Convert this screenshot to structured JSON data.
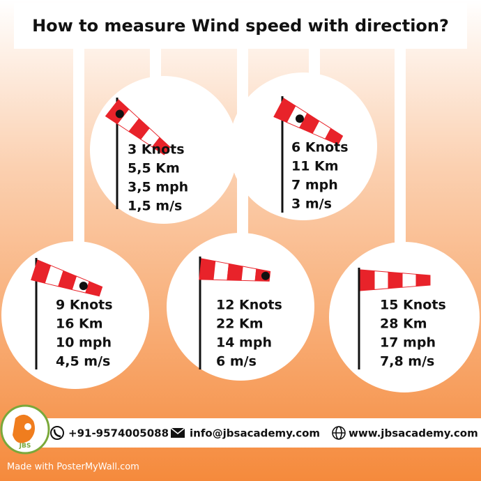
{
  "title": "How to measure Wind speed with direction?",
  "cards": [
    {
      "lines": [
        "3 Knots",
        "5,5 Km",
        "3,5 mph",
        "1,5 m/s"
      ]
    },
    {
      "lines": [
        "6 Knots",
        "11 Km",
        "7 mph",
        "3 m/s"
      ]
    },
    {
      "lines": [
        "9 Knots",
        "16 Km",
        "10 mph",
        "4,5 m/s"
      ]
    },
    {
      "lines": [
        "12 Knots",
        "22 Km",
        "14 mph",
        "6 m/s"
      ]
    },
    {
      "lines": [
        "15 Knots",
        "28 Km",
        "17 mph",
        "7,8 m/s"
      ]
    }
  ],
  "footer": {
    "phone": "+91-9574005088",
    "email": "info@jbsacademy.com",
    "website": "www.jbsacademy.com"
  },
  "logo_text": "JBS",
  "watermark": "Made with PosterMyWall.com"
}
